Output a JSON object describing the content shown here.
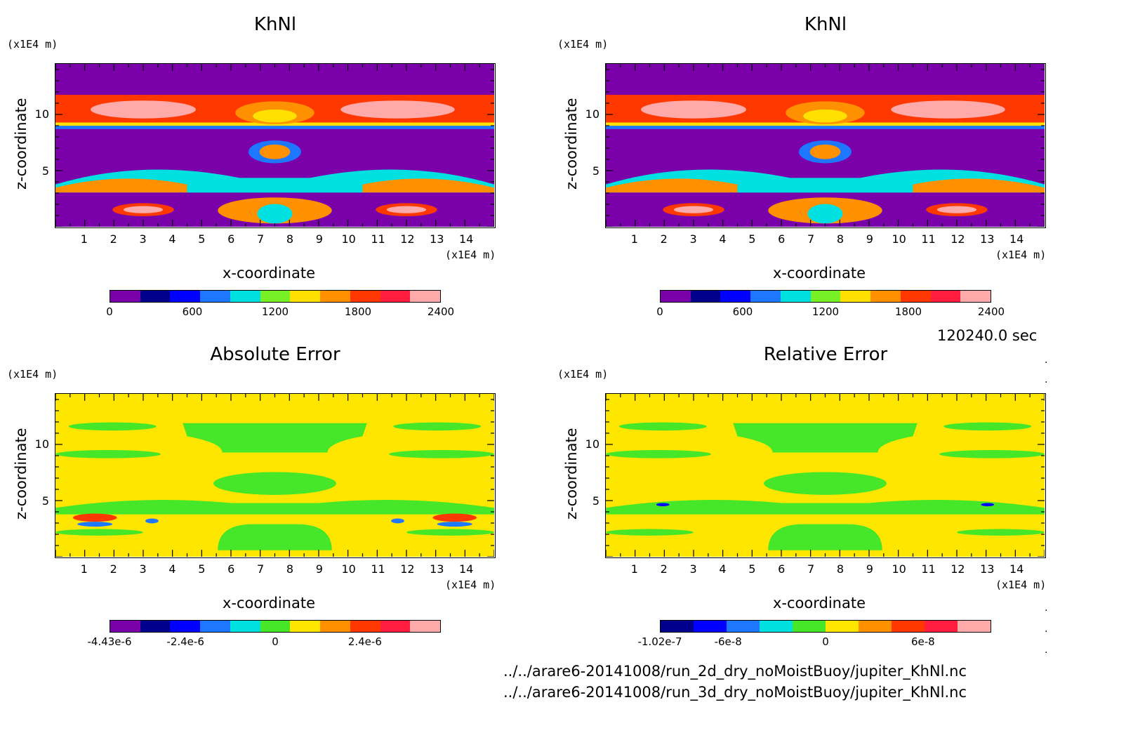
{
  "chart_data": [
    {
      "type": "heatmap",
      "title": "KhNl",
      "xlabel": "x-coordinate",
      "ylabel": "z-coordinate",
      "x_unit": "(x1E4 m)",
      "y_unit": "(x1E4 m)",
      "xticks": [
        "1",
        "2",
        "3",
        "4",
        "5",
        "6",
        "7",
        "8",
        "9",
        "10",
        "11",
        "12",
        "13",
        "14"
      ],
      "yticks": [
        "5",
        "10"
      ],
      "xlim": [
        0,
        15
      ],
      "ylim": [
        0,
        14.5
      ],
      "colorbar": {
        "colors": [
          "#7a00aa",
          "#00008c",
          "#0000ff",
          "#1e78ff",
          "#00e0e0",
          "#78f028",
          "#ffe000",
          "#ff9000",
          "#ff3800",
          "#ff1e40",
          "#ffaaaa"
        ],
        "labels": [
          "0",
          "600",
          "1200",
          "1800",
          "2400"
        ],
        "range": [
          0,
          2400
        ]
      }
    },
    {
      "type": "heatmap",
      "title": "KhNl",
      "xlabel": "x-coordinate",
      "ylabel": "z-coordinate",
      "x_unit": "(x1E4 m)",
      "y_unit": "(x1E4 m)",
      "xticks": [
        "1",
        "2",
        "3",
        "4",
        "5",
        "6",
        "7",
        "8",
        "9",
        "10",
        "11",
        "12",
        "13",
        "14"
      ],
      "yticks": [
        "5",
        "10"
      ],
      "xlim": [
        0,
        15
      ],
      "ylim": [
        0,
        14.5
      ],
      "colorbar": {
        "colors": [
          "#7a00aa",
          "#00008c",
          "#0000ff",
          "#1e78ff",
          "#00e0e0",
          "#78f028",
          "#ffe000",
          "#ff9000",
          "#ff3800",
          "#ff1e40",
          "#ffaaaa"
        ],
        "labels": [
          "0",
          "600",
          "1200",
          "1800",
          "2400"
        ],
        "range": [
          0,
          2400
        ]
      }
    },
    {
      "type": "heatmap",
      "title": "Absolute Error",
      "xlabel": "x-coordinate",
      "ylabel": "z-coordinate",
      "x_unit": "(x1E4 m)",
      "y_unit": "(x1E4 m)",
      "xticks": [
        "1",
        "2",
        "3",
        "4",
        "5",
        "6",
        "7",
        "8",
        "9",
        "10",
        "11",
        "12",
        "13",
        "14"
      ],
      "yticks": [
        "5",
        "10"
      ],
      "xlim": [
        0,
        15
      ],
      "ylim": [
        0,
        14.5
      ],
      "colorbar": {
        "colors": [
          "#7a00aa",
          "#00008c",
          "#0000ff",
          "#1e78ff",
          "#00e0e0",
          "#46e628",
          "#ffe600",
          "#ff9000",
          "#ff3800",
          "#ff1e40",
          "#ffaaaa"
        ],
        "labels": [
          "-4.43e-6",
          "-2.4e-6",
          "0",
          "2.4e-6"
        ],
        "range": [
          -4.43e-06,
          4.43e-06
        ]
      }
    },
    {
      "type": "heatmap",
      "title": "Relative Error",
      "xlabel": "x-coordinate",
      "ylabel": "z-coordinate",
      "x_unit": "(x1E4 m)",
      "y_unit": "(x1E4 m)",
      "xticks": [
        "1",
        "2",
        "3",
        "4",
        "5",
        "6",
        "7",
        "8",
        "9",
        "10",
        "11",
        "12",
        "13",
        "14"
      ],
      "yticks": [
        "5",
        "10"
      ],
      "xlim": [
        0,
        15
      ],
      "ylim": [
        0,
        14.5
      ],
      "colorbar": {
        "colors": [
          "#00008c",
          "#0000ff",
          "#1e78ff",
          "#00e0e0",
          "#46e628",
          "#ffe600",
          "#ff9000",
          "#ff3800",
          "#ff1e40",
          "#ffaaaa"
        ],
        "labels": [
          "-1.02e-7",
          "-6e-8",
          "0",
          "6e-8"
        ],
        "range": [
          -1.02e-07,
          1.02e-07
        ]
      }
    }
  ],
  "time_label": "120240.0 sec",
  "files": [
    "../../arare6-20141008/run_2d_dry_noMoistBuoy/jupiter_KhNl.nc",
    "../../arare6-20141008/run_3d_dry_noMoistBuoy/jupiter_KhNl.nc"
  ]
}
